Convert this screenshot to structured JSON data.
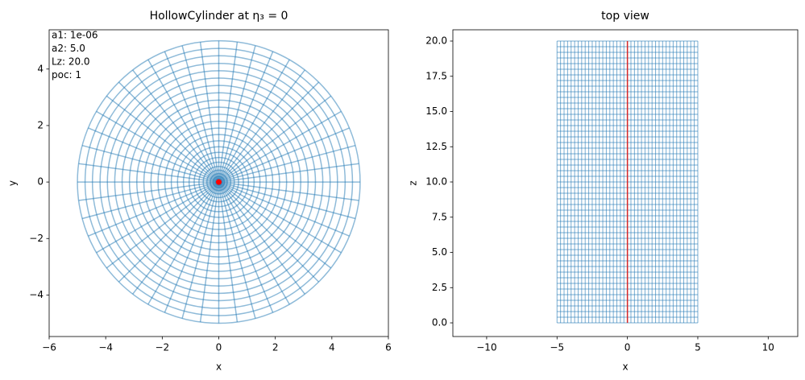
{
  "chart_data": [
    {
      "type": "polar-mesh",
      "title": "HollowCylinder at η₃ = 0",
      "x_label": "x",
      "y_label": "y",
      "annotations": [
        "a1: 1e-06",
        "a2: 5.0",
        "Lz: 20.0",
        "poc: 1"
      ],
      "xlim": [
        -6.0,
        6.0
      ],
      "ylim": [
        -5.47,
        5.39
      ],
      "xticks": [
        {
          "value": -6,
          "label": "−6"
        },
        {
          "value": -4,
          "label": "−4"
        },
        {
          "value": -2,
          "label": "−2"
        },
        0,
        2,
        4,
        6
      ],
      "yticks": [
        {
          "value": -4,
          "label": "−4"
        },
        {
          "value": -2,
          "label": "−2"
        },
        0,
        2,
        4
      ],
      "rings": [
        0.1,
        0.2,
        0.3,
        0.42,
        0.55,
        0.7,
        0.87,
        1.05,
        1.25,
        1.46,
        1.68,
        1.91,
        2.15,
        2.4,
        2.65,
        2.9,
        3.16,
        3.42,
        3.68,
        3.94,
        4.2,
        4.47,
        4.73,
        5.0
      ],
      "spokes": 48,
      "color": "#1f77b4",
      "highlight": {
        "x": 0,
        "y": 0,
        "color": "#ff0000"
      }
    },
    {
      "type": "rect-mesh",
      "title": "top view",
      "x_label": "x",
      "y_label": "z",
      "xlim": [
        -12.4,
        12.1
      ],
      "ylim": [
        -0.97,
        20.8
      ],
      "xticks": [
        {
          "value": -10,
          "label": "−10"
        },
        {
          "value": -5,
          "label": "−5"
        },
        0,
        5,
        10
      ],
      "yticks": [
        {
          "value": 0,
          "label": "0.0"
        },
        2.5,
        {
          "value": 5,
          "label": "5.0"
        },
        7.5,
        {
          "value": 10,
          "label": "10.0"
        },
        12.5,
        {
          "value": 15,
          "label": "15.0"
        },
        17.5,
        {
          "value": 20,
          "label": "20.0"
        }
      ],
      "x_range": [
        -5,
        5
      ],
      "z_range": [
        0,
        20
      ],
      "x_step": 0.25,
      "z_step": 0.4,
      "color": "#1f77b4",
      "highlight": {
        "x": 0,
        "color": "#d62728"
      }
    }
  ]
}
